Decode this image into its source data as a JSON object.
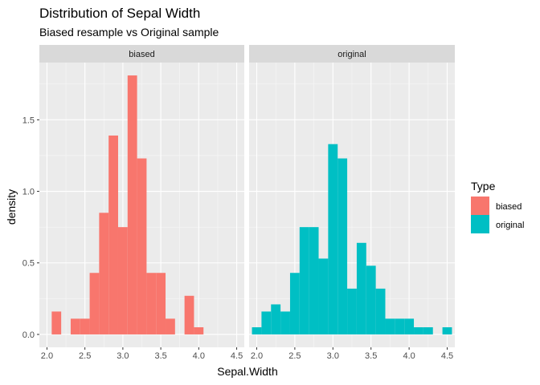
{
  "chart_data": {
    "type": "histogram",
    "title": "Distribution of Sepal Width",
    "subtitle": "Biased resample vs Original sample",
    "xlabel": "Sepal.Width",
    "ylabel": "density",
    "xlim": [
      1.9,
      4.6
    ],
    "ylim": [
      -0.09,
      1.9
    ],
    "xticks": [
      2.0,
      2.5,
      3.0,
      3.5,
      4.0,
      4.5
    ],
    "xtick_labels": [
      "2.0",
      "2.5",
      "3.0",
      "3.5",
      "4.0",
      "4.5"
    ],
    "yticks": [
      0.0,
      0.5,
      1.0,
      1.5
    ],
    "ytick_labels": [
      "0.0",
      "0.5",
      "1.0",
      "1.5"
    ],
    "bin_width": 0.125,
    "grid": true,
    "legend": {
      "title": "Type",
      "position": "right",
      "entries": [
        {
          "label": "biased",
          "color": "#F8766D"
        },
        {
          "label": "original",
          "color": "#00BFC4"
        }
      ]
    },
    "facets": [
      {
        "label": "biased",
        "color": "#F8766D",
        "bins": [
          {
            "x0": 2.0625,
            "x1": 2.1875,
            "density": 0.16
          },
          {
            "x0": 2.1875,
            "x1": 2.3125,
            "density": 0.0
          },
          {
            "x0": 2.3125,
            "x1": 2.4375,
            "density": 0.11
          },
          {
            "x0": 2.4375,
            "x1": 2.5625,
            "density": 0.11
          },
          {
            "x0": 2.5625,
            "x1": 2.6875,
            "density": 0.43
          },
          {
            "x0": 2.6875,
            "x1": 2.8125,
            "density": 0.85
          },
          {
            "x0": 2.8125,
            "x1": 2.9375,
            "density": 1.39
          },
          {
            "x0": 2.9375,
            "x1": 3.0625,
            "density": 0.75
          },
          {
            "x0": 3.0625,
            "x1": 3.1875,
            "density": 1.81
          },
          {
            "x0": 3.1875,
            "x1": 3.3125,
            "density": 1.23
          },
          {
            "x0": 3.3125,
            "x1": 3.4375,
            "density": 0.43
          },
          {
            "x0": 3.4375,
            "x1": 3.5625,
            "density": 0.43
          },
          {
            "x0": 3.5625,
            "x1": 3.6875,
            "density": 0.11
          },
          {
            "x0": 3.6875,
            "x1": 3.8125,
            "density": 0.0
          },
          {
            "x0": 3.8125,
            "x1": 3.9375,
            "density": 0.27
          },
          {
            "x0": 3.9375,
            "x1": 4.0625,
            "density": 0.05
          }
        ]
      },
      {
        "label": "original",
        "color": "#00BFC4",
        "bins": [
          {
            "x0": 1.9375,
            "x1": 2.0625,
            "density": 0.05
          },
          {
            "x0": 2.0625,
            "x1": 2.1875,
            "density": 0.16
          },
          {
            "x0": 2.1875,
            "x1": 2.3125,
            "density": 0.21
          },
          {
            "x0": 2.3125,
            "x1": 2.4375,
            "density": 0.16
          },
          {
            "x0": 2.4375,
            "x1": 2.5625,
            "density": 0.43
          },
          {
            "x0": 2.5625,
            "x1": 2.6875,
            "density": 0.75
          },
          {
            "x0": 2.6875,
            "x1": 2.8125,
            "density": 0.75
          },
          {
            "x0": 2.8125,
            "x1": 2.9375,
            "density": 0.53
          },
          {
            "x0": 2.9375,
            "x1": 3.0625,
            "density": 1.33
          },
          {
            "x0": 3.0625,
            "x1": 3.1875,
            "density": 1.23
          },
          {
            "x0": 3.1875,
            "x1": 3.3125,
            "density": 0.32
          },
          {
            "x0": 3.3125,
            "x1": 3.4375,
            "density": 0.64
          },
          {
            "x0": 3.4375,
            "x1": 3.5625,
            "density": 0.48
          },
          {
            "x0": 3.5625,
            "x1": 3.6875,
            "density": 0.32
          },
          {
            "x0": 3.6875,
            "x1": 3.8125,
            "density": 0.11
          },
          {
            "x0": 3.8125,
            "x1": 3.9375,
            "density": 0.11
          },
          {
            "x0": 3.9375,
            "x1": 4.0625,
            "density": 0.11
          },
          {
            "x0": 4.0625,
            "x1": 4.1875,
            "density": 0.05
          },
          {
            "x0": 4.1875,
            "x1": 4.3125,
            "density": 0.05
          },
          {
            "x0": 4.3125,
            "x1": 4.4375,
            "density": 0.0
          },
          {
            "x0": 4.4375,
            "x1": 4.5625,
            "density": 0.05
          }
        ]
      }
    ]
  }
}
